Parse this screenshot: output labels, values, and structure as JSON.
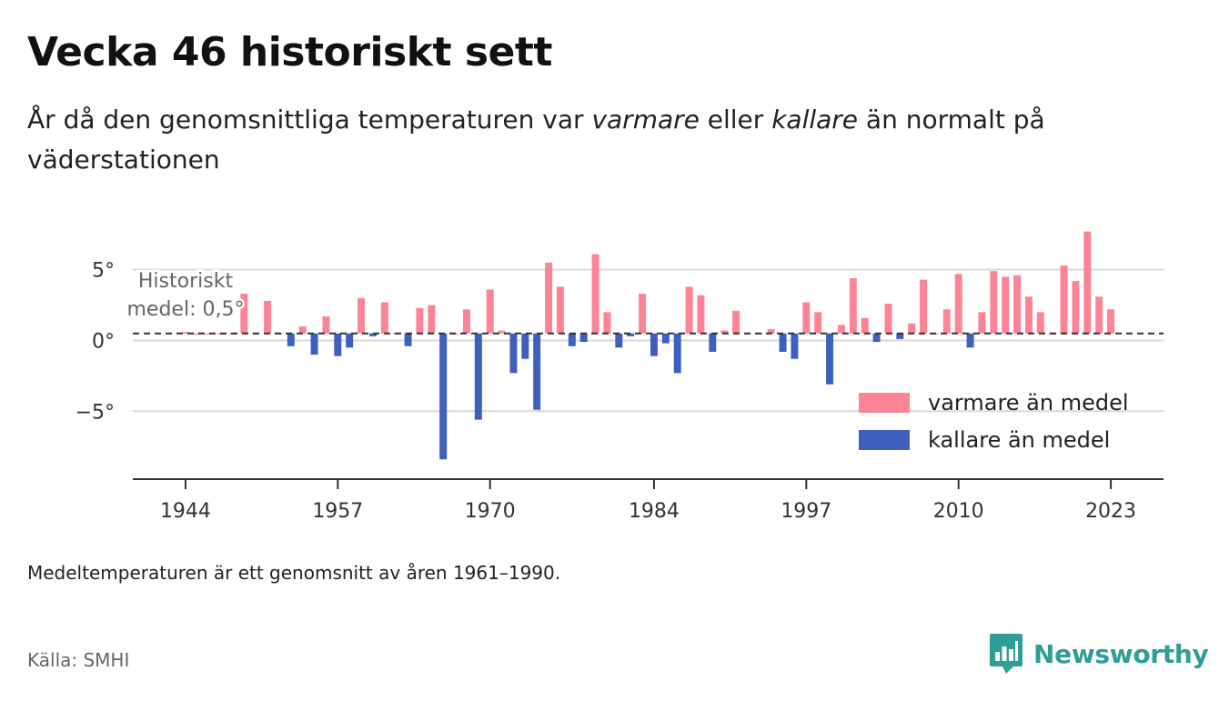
{
  "header": {
    "title": "Vecka 46 historiskt sett",
    "subtitle_part1": "År då den genomsnittliga temperaturen var ",
    "subtitle_em1": "varmare",
    "subtitle_part2": " eller ",
    "subtitle_em2": "kallare",
    "subtitle_part3": " än normalt på väderstationen"
  },
  "footer": {
    "note": "Medeltemperaturen är ett genomsnitt av åren 1961–1990.",
    "source": "Källa: SMHI",
    "brand": "Newsworthy"
  },
  "colors": {
    "warm": "#fd8494",
    "cold": "#3f5fbf",
    "grid": "#d9d9d9",
    "axis": "#333333",
    "mean_line": "#333333",
    "brand": "#2f9e97"
  },
  "chart_data": {
    "type": "bar",
    "mean": 0.5,
    "mean_label_line1": "Historiskt",
    "mean_label_line2": "medel: 0,5°",
    "ylim": [
      -9.8,
      8
    ],
    "xlim": [
      1939.5,
      2027.5
    ],
    "yticks": [
      {
        "value": 5,
        "label": "5°"
      },
      {
        "value": 0,
        "label": "0°"
      },
      {
        "value": -5,
        "label": "−5°"
      }
    ],
    "xticks": [
      {
        "value": 1944,
        "label": "1944"
      },
      {
        "value": 1957,
        "label": "1957"
      },
      {
        "value": 1970,
        "label": "1970"
      },
      {
        "value": 1984,
        "label": "1984"
      },
      {
        "value": 1997,
        "label": "1997"
      },
      {
        "value": 2010,
        "label": "2010"
      },
      {
        "value": 2023,
        "label": "2023"
      }
    ],
    "grid": true,
    "legend_position": "bottom-right",
    "series": [
      {
        "name": "varmare än medel",
        "color": "#fd8494"
      },
      {
        "name": "kallare än medel",
        "color": "#3f5fbf"
      }
    ],
    "x": [
      1944,
      1945,
      1946,
      1947,
      1948,
      1949,
      1950,
      1951,
      1952,
      1953,
      1954,
      1955,
      1956,
      1957,
      1958,
      1959,
      1960,
      1961,
      1962,
      1963,
      1964,
      1965,
      1966,
      1967,
      1968,
      1969,
      1970,
      1971,
      1972,
      1973,
      1974,
      1975,
      1976,
      1977,
      1978,
      1979,
      1980,
      1981,
      1982,
      1983,
      1984,
      1985,
      1986,
      1987,
      1988,
      1989,
      1990,
      1991,
      1992,
      1993,
      1994,
      1995,
      1996,
      1997,
      1998,
      1999,
      2000,
      2001,
      2002,
      2003,
      2004,
      2005,
      2006,
      2007,
      2008,
      2009,
      2010,
      2011,
      2012,
      2013,
      2014,
      2015,
      2016,
      2017,
      2018,
      2019,
      2020,
      2021,
      2022,
      2023
    ],
    "values": [
      0.6,
      0.5,
      0.5,
      0.5,
      0.5,
      3.3,
      0.5,
      2.8,
      0.5,
      -0.4,
      1.0,
      -1.0,
      1.7,
      -1.1,
      -0.5,
      3.0,
      0.3,
      2.7,
      0.5,
      -0.4,
      2.3,
      2.5,
      -8.4,
      0.5,
      2.2,
      -5.6,
      3.6,
      0.7,
      -2.3,
      -1.3,
      -4.9,
      5.5,
      3.8,
      -0.4,
      -0.1,
      6.1,
      2.0,
      -0.5,
      0.3,
      3.3,
      -1.1,
      -0.2,
      -2.3,
      3.8,
      3.2,
      -0.8,
      0.7,
      2.1,
      0.5,
      0.5,
      0.8,
      -0.8,
      -1.3,
      2.7,
      2.0,
      -3.1,
      1.1,
      4.4,
      1.6,
      -0.1,
      2.6,
      0.1,
      1.2,
      4.3,
      0.5,
      2.2,
      4.7,
      -0.5,
      2.0,
      4.9,
      4.5,
      4.6,
      3.1,
      2.0,
      0.5,
      5.3,
      4.2,
      7.7,
      3.1,
      2.2
    ]
  }
}
